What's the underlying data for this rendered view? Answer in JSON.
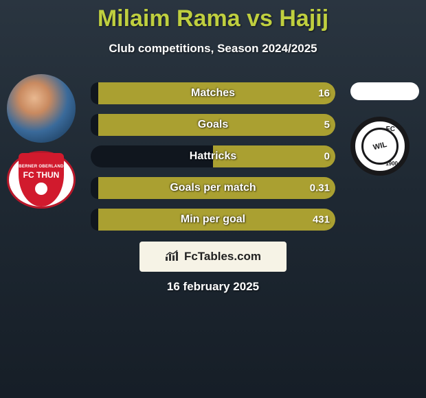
{
  "title": "Milaim Rama vs Hajij",
  "subtitle": "Club competitions, Season 2024/2025",
  "date": "16 february 2025",
  "watermark_text": "FcTables.com",
  "colors": {
    "bar_olive": "#aaa031",
    "bar_dark": "#10161e",
    "accent": "#bfcf3f"
  },
  "clubs": {
    "left_name": "FC THUN",
    "right_fc": "FC",
    "right_year": "1900",
    "right_name": "WIL"
  },
  "stat_rows": [
    {
      "label": "Matches",
      "left_value": "",
      "right_value": "16",
      "left_width_pct": 3,
      "right_width_pct": 97,
      "left_color": "#10161e",
      "right_color": "#aaa031"
    },
    {
      "label": "Goals",
      "left_value": "",
      "right_value": "5",
      "left_width_pct": 3,
      "right_width_pct": 97,
      "left_color": "#10161e",
      "right_color": "#aaa031"
    },
    {
      "label": "Hattricks",
      "left_value": "",
      "right_value": "0",
      "left_width_pct": 50,
      "right_width_pct": 50,
      "left_color": "#10161e",
      "right_color": "#aaa031"
    },
    {
      "label": "Goals per match",
      "left_value": "",
      "right_value": "0.31",
      "left_width_pct": 3,
      "right_width_pct": 97,
      "left_color": "#10161e",
      "right_color": "#aaa031"
    },
    {
      "label": "Min per goal",
      "left_value": "",
      "right_value": "431",
      "left_width_pct": 3,
      "right_width_pct": 97,
      "left_color": "#10161e",
      "right_color": "#aaa031"
    }
  ]
}
